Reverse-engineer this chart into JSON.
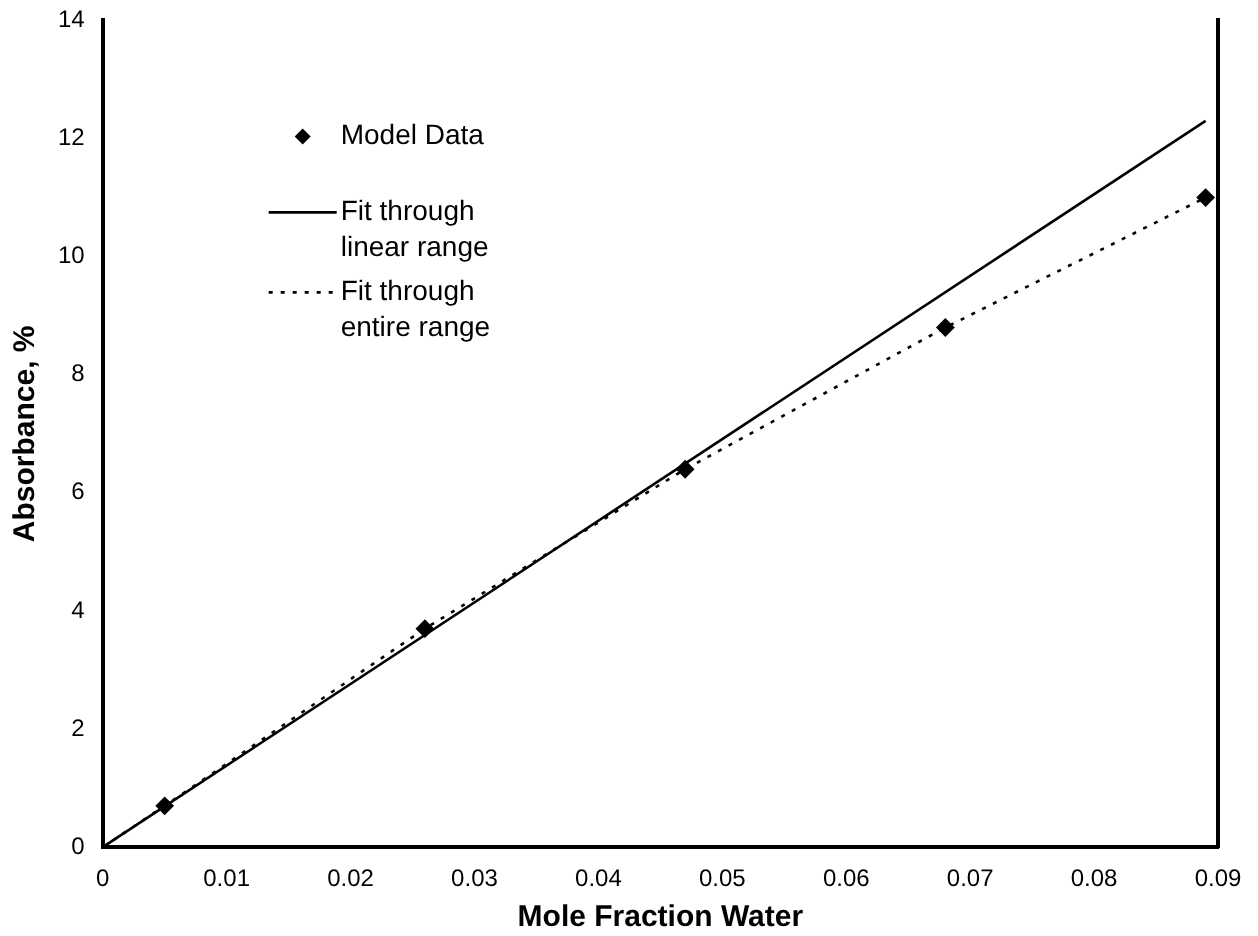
{
  "chart_data": {
    "type": "scatter",
    "xlabel": "Mole Fraction Water",
    "ylabel": "Absorbance, %",
    "xlim": [
      0,
      0.09
    ],
    "xticks": [
      0,
      0.01,
      0.02,
      0.03,
      0.04,
      0.05,
      0.06,
      0.07,
      0.08,
      0.09
    ],
    "ylim": [
      0,
      14
    ],
    "yticks": [
      0,
      2,
      4,
      6,
      8,
      10,
      12,
      14
    ],
    "grid": false,
    "legend": "top left",
    "series": [
      {
        "name": "Model Data",
        "type": "scatter",
        "marker": "diamond",
        "color": "#000000",
        "x": [
          0.005,
          0.026,
          0.047,
          0.068,
          0.089
        ],
        "values": [
          0.7,
          3.7,
          6.4,
          8.8,
          11.0
        ]
      },
      {
        "name": "Fit through linear range",
        "type": "line",
        "line_style": "solid",
        "marker": "none",
        "color": "#000000",
        "x": [
          0,
          0.089
        ],
        "values": [
          0,
          12.3
        ]
      },
      {
        "name": "Fit through entire range",
        "type": "line",
        "line_style": "dotted",
        "marker": "none",
        "color": "#000000",
        "x": [
          0,
          0.005,
          0.026,
          0.047,
          0.068,
          0.089
        ],
        "values": [
          0,
          0.7,
          3.7,
          6.4,
          8.8,
          11.0
        ]
      }
    ]
  }
}
